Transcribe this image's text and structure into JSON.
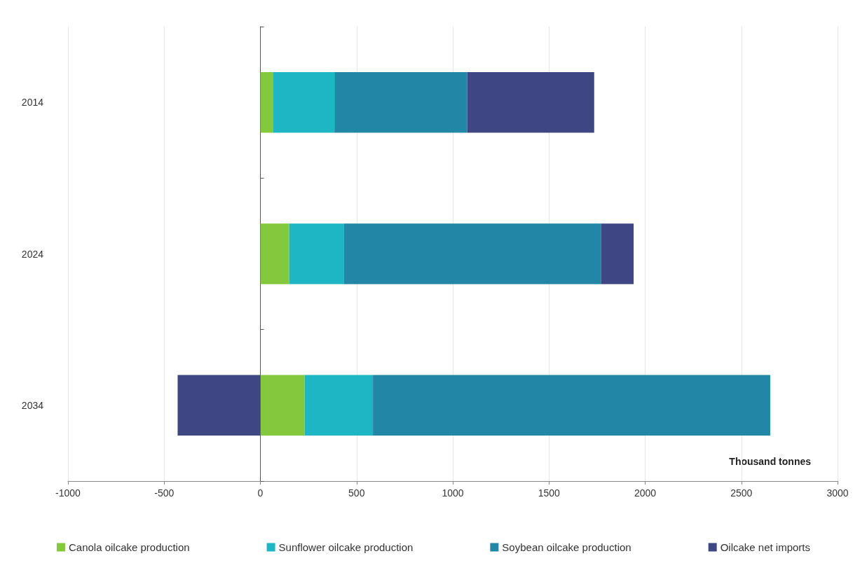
{
  "chart_data": {
    "type": "bar",
    "orientation": "horizontal",
    "stacked": true,
    "xlabel": "Thousand tonnes",
    "categories": [
      "2014",
      "2024",
      "2034"
    ],
    "series": [
      {
        "name": "Canola oilcake production",
        "color": "#84c83d",
        "values": [
          65,
          150,
          230
        ]
      },
      {
        "name": "Sunflower oilcake production",
        "color": "#1eb6c4",
        "values": [
          320,
          285,
          355
        ]
      },
      {
        "name": "Soybean oilcake production",
        "color": "#2286a6",
        "values": [
          690,
          1335,
          2065
        ]
      },
      {
        "name": "Oilcake net imports",
        "color": "#3e4784",
        "values": [
          660,
          170,
          -430
        ]
      }
    ],
    "xlim": [
      -1000,
      3000
    ],
    "xticks": [
      -1000,
      -500,
      0,
      500,
      1000,
      1500,
      2000,
      2500,
      3000
    ],
    "grid": "x",
    "legend": "bottom"
  }
}
